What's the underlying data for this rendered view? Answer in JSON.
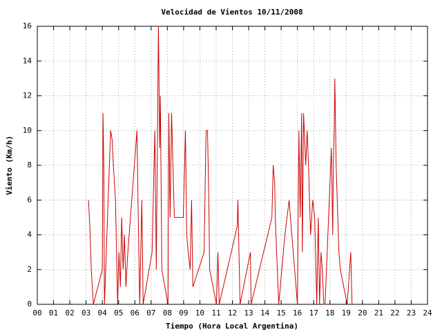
{
  "chart_data": {
    "type": "line",
    "title": "Velocidad de Vientos 10/11/2008",
    "x_label": "Tiempo (Hora Local Argentina)",
    "y_label": "Viento (Km/h)",
    "x": [
      3.15,
      3.23,
      3.32,
      3.45,
      4.0,
      4.04,
      4.09,
      4.13,
      4.51,
      4.6,
      4.68,
      4.81,
      4.94,
      5.02,
      5.11,
      5.19,
      5.28,
      5.36,
      5.45,
      5.57,
      6.13,
      6.21,
      6.3,
      6.43,
      6.51,
      7.06,
      7.23,
      7.32,
      7.45,
      7.53,
      7.57,
      7.66,
      8.04,
      8.09,
      8.17,
      8.26,
      8.34,
      8.43,
      8.55,
      8.98,
      9.11,
      9.19,
      9.28,
      9.4,
      9.49,
      9.57,
      10.26,
      10.38,
      10.47,
      10.55,
      10.6,
      11.02,
      11.11,
      11.19,
      12.3,
      12.34,
      12.47,
      13.11,
      13.15,
      14.43,
      14.51,
      14.6,
      14.64,
      14.72,
      14.85,
      15.23,
      15.49,
      15.57,
      16.0,
      16.09,
      16.17,
      16.26,
      16.3,
      16.38,
      16.51,
      16.6,
      16.68,
      16.81,
      16.94,
      17.06,
      17.19,
      17.28,
      17.36,
      17.45,
      17.53,
      17.62,
      17.7,
      18.09,
      18.17,
      18.21,
      18.26,
      18.3,
      18.38,
      18.55,
      18.64,
      19.06,
      19.28,
      19.32,
      19.36
    ],
    "series": [
      {
        "name": "Viento",
        "color": "#cc0000",
        "values": [
          6,
          4.5,
          2,
          0,
          2,
          11,
          8,
          0,
          10,
          9.5,
          8,
          6,
          0,
          3,
          1,
          5,
          2,
          4,
          1,
          3,
          10,
          5,
          0,
          6,
          0,
          3,
          10,
          2,
          16,
          9,
          12,
          2,
          0,
          11,
          5,
          11,
          8,
          5,
          5,
          5,
          10,
          4,
          3,
          2,
          6,
          1,
          3,
          10,
          10,
          6,
          2,
          0,
          3,
          0,
          4.5,
          6,
          0,
          3,
          0,
          5,
          8,
          7,
          5,
          3,
          0,
          4,
          6,
          5,
          0,
          10,
          5,
          11,
          3,
          11,
          8,
          10,
          8,
          4,
          6,
          5,
          0,
          5,
          0,
          3,
          2,
          0,
          0,
          9,
          4,
          8,
          10,
          13,
          8,
          3,
          2,
          0,
          3,
          1.5,
          0
        ]
      }
    ],
    "xlim": [
      0,
      24
    ],
    "xticks": [
      {
        "value": 0,
        "label": "00"
      },
      {
        "value": 1,
        "label": "01"
      },
      {
        "value": 2,
        "label": "02"
      },
      {
        "value": 3,
        "label": "03"
      },
      {
        "value": 4,
        "label": "04"
      },
      {
        "value": 5,
        "label": "05"
      },
      {
        "value": 6,
        "label": "06"
      },
      {
        "value": 7,
        "label": "07"
      },
      {
        "value": 8,
        "label": "08"
      },
      {
        "value": 9,
        "label": "09"
      },
      {
        "value": 10,
        "label": "10"
      },
      {
        "value": 11,
        "label": "11"
      },
      {
        "value": 12,
        "label": "12"
      },
      {
        "value": 13,
        "label": "13"
      },
      {
        "value": 14,
        "label": "14"
      },
      {
        "value": 15,
        "label": "15"
      },
      {
        "value": 16,
        "label": "16"
      },
      {
        "value": 17,
        "label": "17"
      },
      {
        "value": 18,
        "label": "18"
      },
      {
        "value": 19,
        "label": "19"
      },
      {
        "value": 20,
        "label": "20"
      },
      {
        "value": 21,
        "label": "21"
      },
      {
        "value": 22,
        "label": "22"
      },
      {
        "value": 23,
        "label": "23"
      },
      {
        "value": 24,
        "label": "24"
      }
    ],
    "ylim": [
      0,
      16
    ],
    "yticks": [
      0,
      2,
      4,
      6,
      8,
      10,
      12,
      14,
      16
    ],
    "grid": true
  }
}
